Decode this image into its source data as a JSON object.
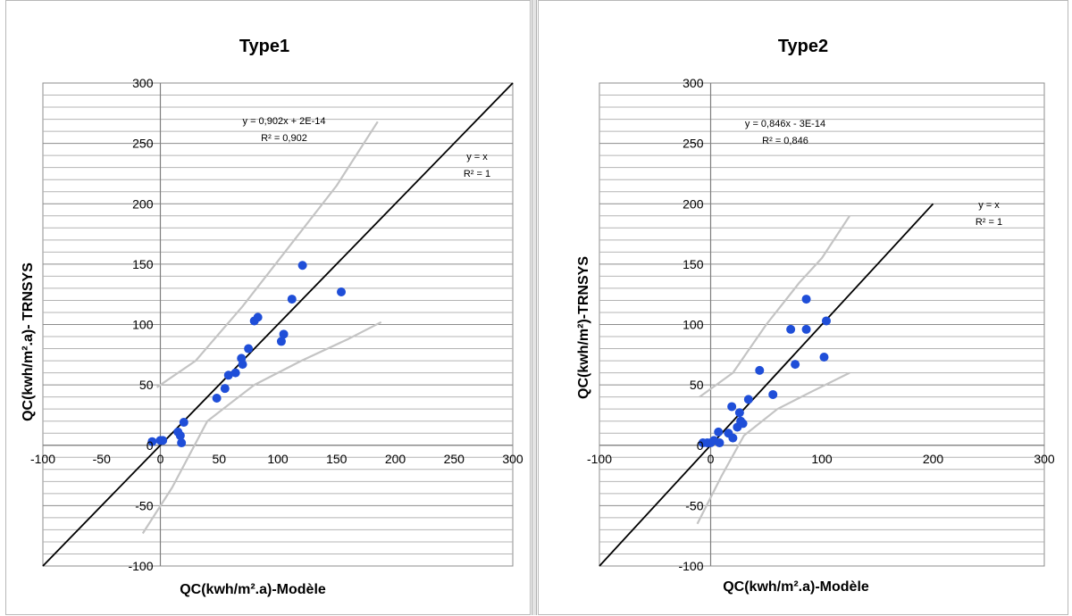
{
  "chart_data": [
    {
      "type": "scatter",
      "title": "Type1",
      "xlabel": "QC(kwh/m².a)-Modèle",
      "ylabel": "QC(kwh/m².a)- TRNSYS",
      "xlim": [
        -100,
        300
      ],
      "ylim": [
        -100,
        300
      ],
      "xticks": [
        -100,
        -50,
        0,
        50,
        100,
        150,
        200,
        250,
        300
      ],
      "yticks": [
        -100,
        -50,
        0,
        50,
        100,
        150,
        200,
        250,
        300
      ],
      "grid": "horizontal",
      "series": [
        {
          "values": [
            [
              -7,
              3
            ],
            [
              0,
              4
            ],
            [
              2,
              4
            ],
            [
              15,
              11
            ],
            [
              17,
              8
            ],
            [
              18,
              2
            ],
            [
              20,
              19
            ],
            [
              48,
              39
            ],
            [
              55,
              47
            ],
            [
              58,
              58
            ],
            [
              64,
              60
            ],
            [
              69,
              72
            ],
            [
              70,
              67
            ],
            [
              75,
              80
            ],
            [
              80,
              103
            ],
            [
              83,
              106
            ],
            [
              103,
              86
            ],
            [
              105,
              92
            ],
            [
              112,
              121
            ],
            [
              121,
              149
            ],
            [
              154,
              127
            ]
          ],
          "color": "#1f4ed8"
        },
        {
          "type": "line",
          "x": [
            -100,
            300
          ],
          "y": [
            -100,
            300
          ],
          "color": "#000000"
        },
        {
          "type": "line",
          "x": [
            -3,
            30,
            70,
            110,
            150,
            185
          ],
          "y": [
            48,
            70,
            115,
            165,
            215,
            268
          ],
          "color": "#c4c4c4"
        },
        {
          "type": "line",
          "x": [
            -15,
            10,
            40,
            80,
            120,
            160,
            188
          ],
          "y": [
            -73,
            -35,
            20,
            50,
            70,
            88,
            102
          ],
          "color": "#c4c4c4"
        }
      ],
      "annotations": [
        "y = 0,902x + 2E-14",
        "R² = 0,902",
        "y = x",
        "R² = 1"
      ]
    },
    {
      "type": "scatter",
      "title": "Type2",
      "xlabel": "QC(kwh/m².a)-Modèle",
      "ylabel": "QC(kwh/m²)-TRNSYS",
      "xlim": [
        -100,
        300
      ],
      "ylim": [
        -100,
        300
      ],
      "xticks": [
        -100,
        0,
        100,
        200,
        300
      ],
      "yticks": [
        -100,
        -50,
        0,
        50,
        100,
        150,
        200,
        250,
        300
      ],
      "grid": "horizontal",
      "series": [
        {
          "values": [
            [
              -7,
              2
            ],
            [
              -3,
              2
            ],
            [
              0,
              2
            ],
            [
              3,
              4
            ],
            [
              7,
              11
            ],
            [
              8,
              2
            ],
            [
              16,
              10
            ],
            [
              19,
              32
            ],
            [
              20,
              6
            ],
            [
              24,
              15
            ],
            [
              26,
              27
            ],
            [
              27,
              20
            ],
            [
              29,
              18
            ],
            [
              34,
              38
            ],
            [
              44,
              62
            ],
            [
              56,
              42
            ],
            [
              72,
              96
            ],
            [
              76,
              67
            ],
            [
              86,
              96
            ],
            [
              86,
              121
            ],
            [
              102,
              73
            ],
            [
              104,
              103
            ]
          ],
          "color": "#1f4ed8"
        },
        {
          "type": "line",
          "x": [
            -100,
            200
          ],
          "y": [
            -100,
            200
          ],
          "color": "#000000"
        },
        {
          "type": "line",
          "x": [
            -10,
            20,
            50,
            80,
            100,
            125
          ],
          "y": [
            40,
            60,
            100,
            135,
            155,
            190
          ],
          "color": "#c4c4c4"
        },
        {
          "type": "line",
          "x": [
            -12,
            10,
            30,
            60,
            90,
            125
          ],
          "y": [
            -65,
            -25,
            8,
            30,
            44,
            60
          ],
          "color": "#c4c4c4"
        }
      ],
      "annotations": [
        "y = 0,846x - 3E-14",
        "R² = 0,846",
        "y = x",
        "R² = 1"
      ]
    }
  ]
}
